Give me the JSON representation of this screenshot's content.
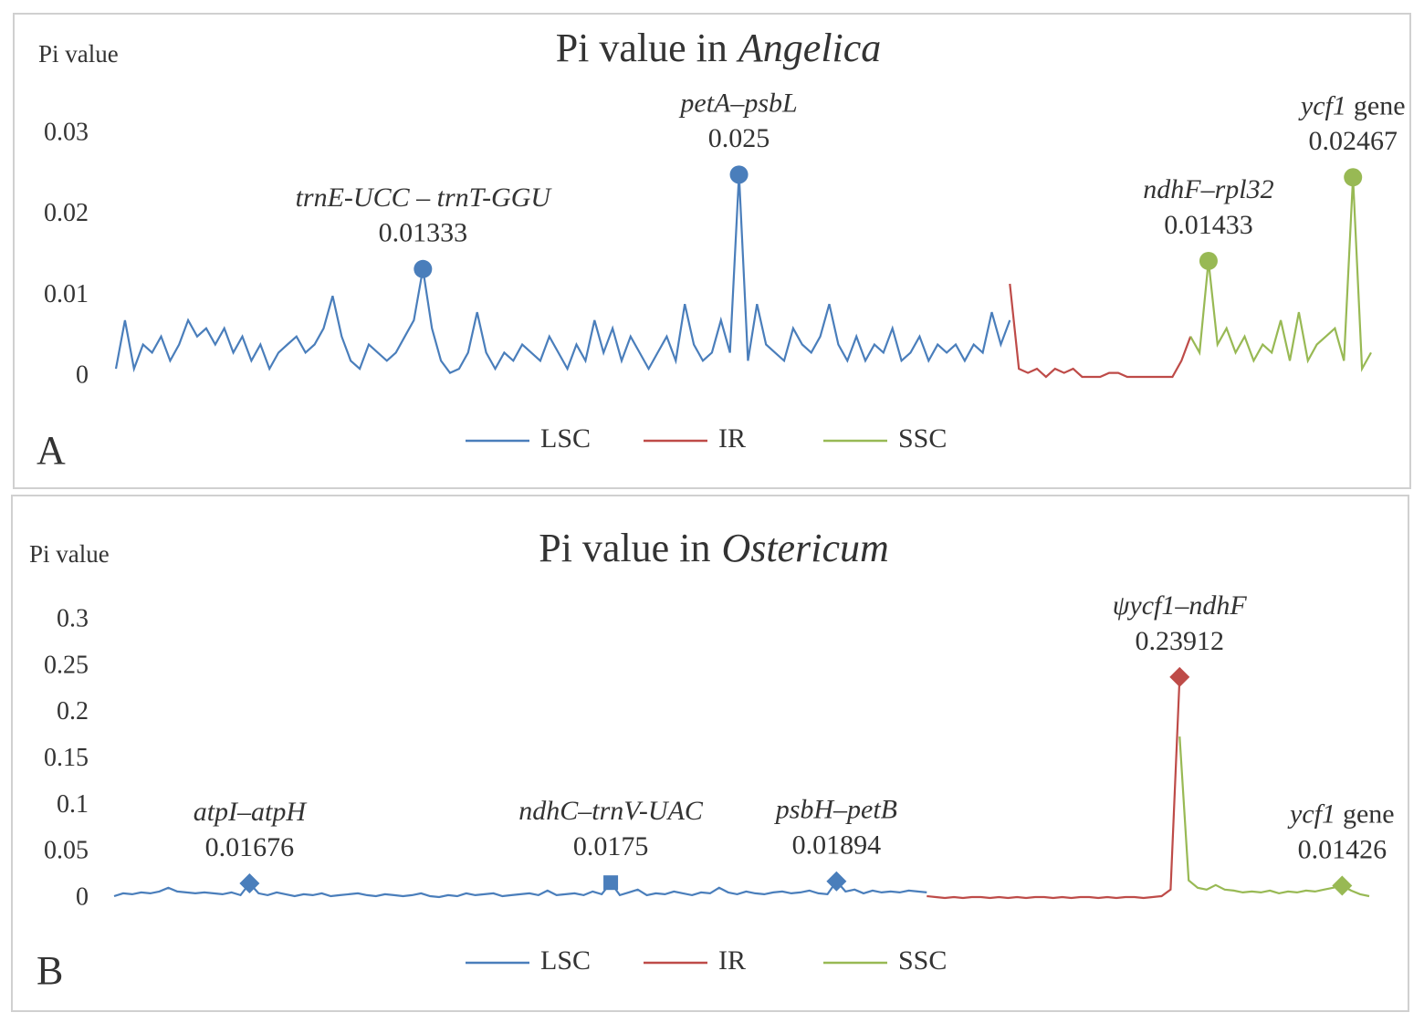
{
  "chart_data": [
    {
      "type": "line",
      "panel": "A",
      "title": "Pi value in",
      "title_italic": "Angelica",
      "y_label": "Pi value",
      "ylim": [
        0,
        0.03
      ],
      "yticks": [
        0,
        0.01,
        0.02,
        0.03
      ],
      "series": [
        {
          "name": "LSC",
          "color": "#4a7ebb",
          "values": [
            0.001,
            0.007,
            0.001,
            0.004,
            0.003,
            0.005,
            0.002,
            0.004,
            0.007,
            0.005,
            0.006,
            0.004,
            0.006,
            0.003,
            0.005,
            0.002,
            0.004,
            0.001,
            0.003,
            0.004,
            0.005,
            0.003,
            0.004,
            0.006,
            0.01,
            0.005,
            0.002,
            0.001,
            0.004,
            0.003,
            0.002,
            0.003,
            0.005,
            0.007,
            0.01333,
            0.006,
            0.002,
            0.0005,
            0.001,
            0.003,
            0.008,
            0.003,
            0.001,
            0.003,
            0.002,
            0.004,
            0.003,
            0.002,
            0.005,
            0.003,
            0.001,
            0.004,
            0.002,
            0.007,
            0.003,
            0.006,
            0.002,
            0.005,
            0.003,
            0.001,
            0.003,
            0.005,
            0.002,
            0.009,
            0.004,
            0.002,
            0.003,
            0.007,
            0.003,
            0.025,
            0.002,
            0.009,
            0.004,
            0.003,
            0.002,
            0.006,
            0.004,
            0.003,
            0.005,
            0.009,
            0.004,
            0.002,
            0.005,
            0.002,
            0.004,
            0.003,
            0.006,
            0.002,
            0.003,
            0.005,
            0.002,
            0.004,
            0.003,
            0.004,
            0.002,
            0.004,
            0.003,
            0.008,
            0.004,
            0.007
          ]
        },
        {
          "name": "IR",
          "color": "#be4b48",
          "values": [
            0.0115,
            0.001,
            0.0005,
            0.001,
            0,
            0.001,
            0.0005,
            0.001,
            0,
            0,
            0,
            0.0005,
            0.0005,
            0,
            0,
            0,
            0,
            0,
            0,
            0.002,
            0.005
          ]
        },
        {
          "name": "SSC",
          "color": "#98b954",
          "values": [
            0.005,
            0.003,
            0.01433,
            0.004,
            0.006,
            0.003,
            0.005,
            0.002,
            0.004,
            0.003,
            0.007,
            0.002,
            0.008,
            0.002,
            0.004,
            0.005,
            0.006,
            0.002,
            0.02467,
            0.001,
            0.003
          ]
        }
      ],
      "annotations": [
        {
          "label": "trnE-UCC – trnT-GGU",
          "value": 0.01333,
          "x": 34,
          "marker": "circle",
          "color": "#4a7ebb"
        },
        {
          "label": "petA–psbL",
          "value": 0.025,
          "x": 69,
          "marker": "circle",
          "color": "#4a7ebb"
        },
        {
          "label": "ndhF–rpl32",
          "value": 0.01433,
          "x": 121,
          "marker": "circle",
          "color": "#98b954"
        },
        {
          "label": "ycf1",
          "suffix": "gene",
          "value": 0.02467,
          "x": 137,
          "marker": "circle",
          "color": "#98b954"
        }
      ]
    },
    {
      "type": "line",
      "panel": "B",
      "title": "Pi value in",
      "title_italic": "Ostericum",
      "y_label": "Pi value",
      "ylim": [
        0,
        0.3
      ],
      "yticks": [
        0,
        0.05,
        0.1,
        0.15,
        0.2,
        0.25,
        0.3
      ],
      "series": [
        {
          "name": "LSC",
          "color": "#4a7ebb",
          "values": [
            0.003,
            0.006,
            0.005,
            0.007,
            0.006,
            0.008,
            0.012,
            0.008,
            0.007,
            0.006,
            0.007,
            0.006,
            0.005,
            0.007,
            0.004,
            0.01676,
            0.006,
            0.004,
            0.007,
            0.005,
            0.003,
            0.005,
            0.004,
            0.006,
            0.003,
            0.004,
            0.005,
            0.006,
            0.004,
            0.003,
            0.005,
            0.004,
            0.003,
            0.004,
            0.006,
            0.003,
            0.002,
            0.004,
            0.003,
            0.006,
            0.004,
            0.005,
            0.006,
            0.003,
            0.004,
            0.005,
            0.006,
            0.004,
            0.009,
            0.004,
            0.005,
            0.006,
            0.004,
            0.008,
            0.005,
            0.0175,
            0.004,
            0.007,
            0.01,
            0.004,
            0.006,
            0.005,
            0.008,
            0.006,
            0.004,
            0.007,
            0.006,
            0.012,
            0.007,
            0.005,
            0.008,
            0.006,
            0.005,
            0.007,
            0.008,
            0.006,
            0.007,
            0.009,
            0.006,
            0.005,
            0.01894,
            0.008,
            0.01,
            0.006,
            0.009,
            0.007,
            0.008,
            0.007,
            0.009,
            0.008,
            0.007
          ]
        },
        {
          "name": "IR",
          "color": "#be4b48",
          "values": [
            0.003,
            0.002,
            0.001,
            0.002,
            0.001,
            0.002,
            0.002,
            0.001,
            0.002,
            0.001,
            0.002,
            0.001,
            0.002,
            0.002,
            0.001,
            0.002,
            0.001,
            0.002,
            0.002,
            0.001,
            0.002,
            0.001,
            0.002,
            0.002,
            0.001,
            0.002,
            0.003,
            0.01,
            0.23912
          ]
        },
        {
          "name": "SSC",
          "color": "#98b954",
          "values": [
            0.175,
            0.02,
            0.012,
            0.01,
            0.015,
            0.01,
            0.009,
            0.007,
            0.008,
            0.007,
            0.009,
            0.006,
            0.008,
            0.007,
            0.009,
            0.008,
            0.01,
            0.012,
            0.01426,
            0.009,
            0.005,
            0.003
          ]
        }
      ],
      "annotations": [
        {
          "label": "atpI–atpH",
          "value": 0.01676,
          "x": 15,
          "marker": "diamond",
          "color": "#4a7ebb"
        },
        {
          "label": "ndhC–trnV-UAC",
          "value": 0.0175,
          "x": 55,
          "marker": "square",
          "color": "#4a7ebb"
        },
        {
          "label": "psbH–petB",
          "value": 0.01894,
          "x": 80,
          "marker": "diamond",
          "color": "#4a7ebb"
        },
        {
          "label": "ψycf1–ndhF",
          "value": 0.23912,
          "x": 118,
          "marker": "diamond",
          "color": "#be4b48"
        },
        {
          "label": "ycf1",
          "suffix": "gene",
          "value": 0.01426,
          "x": 136,
          "marker": "diamond",
          "color": "#98b954"
        }
      ]
    }
  ]
}
